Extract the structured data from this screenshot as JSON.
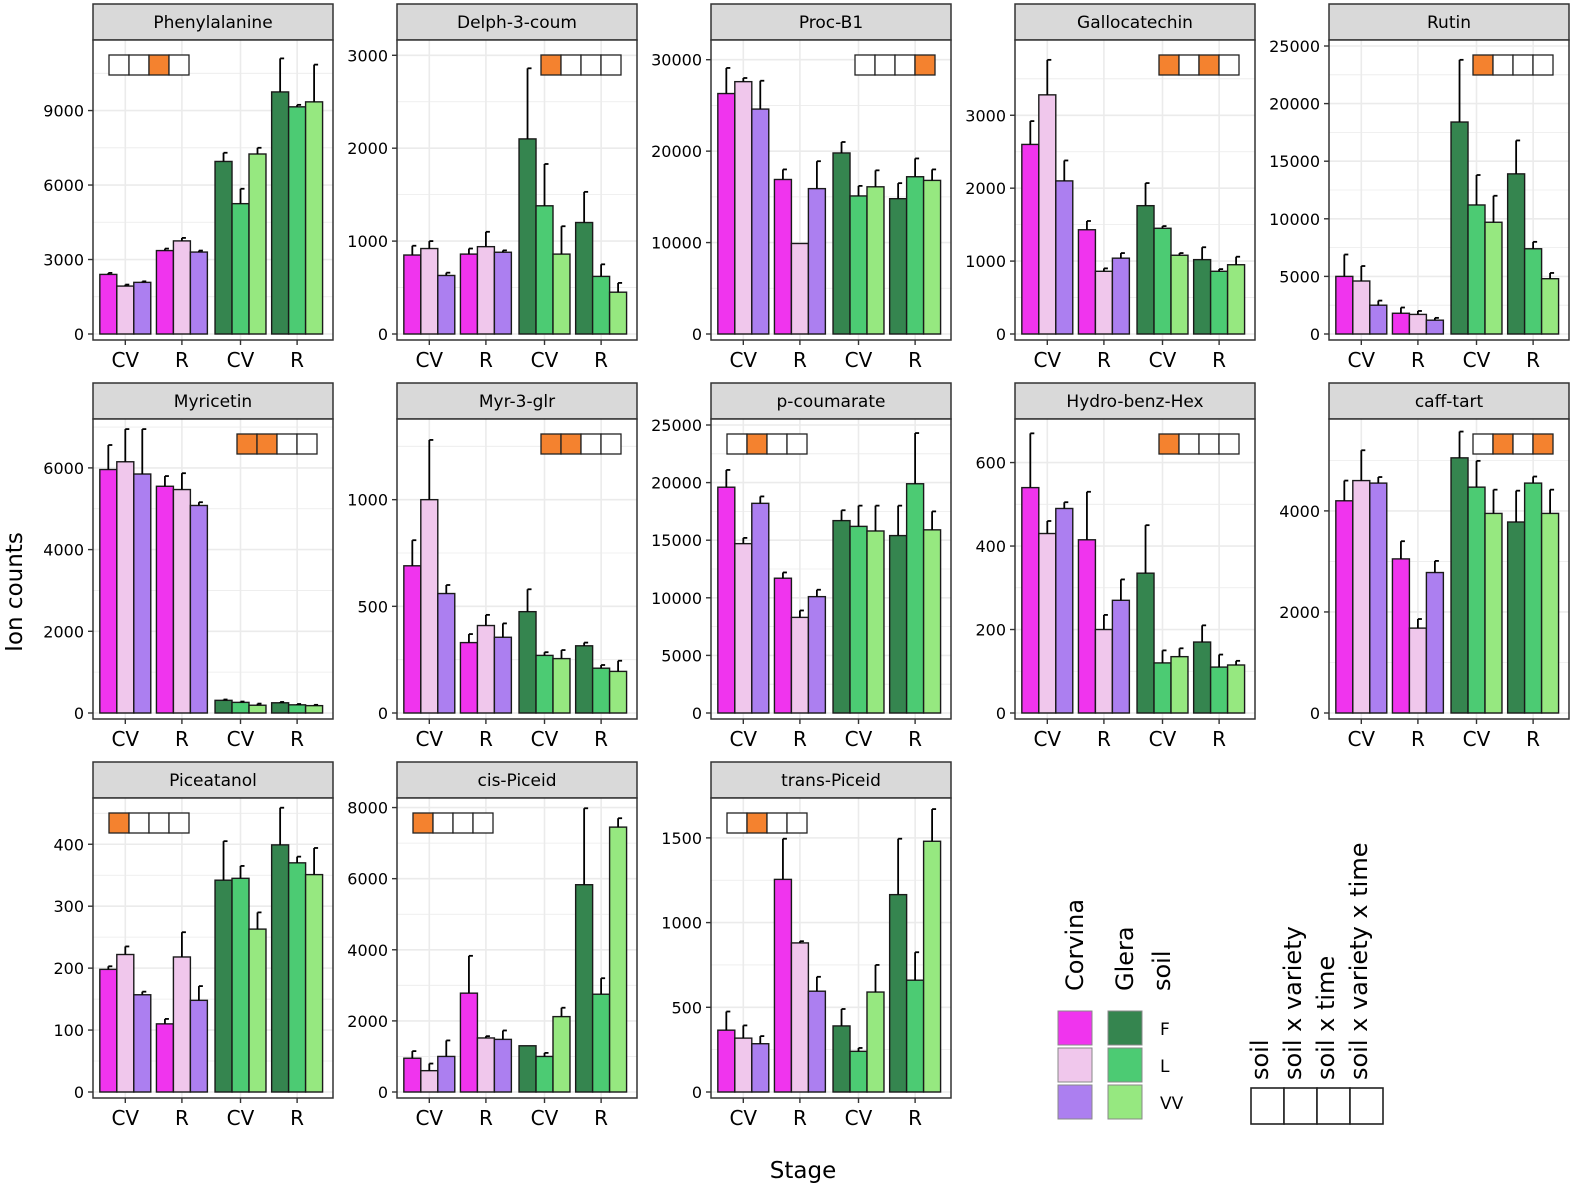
{
  "chart_data": {
    "type": "bar",
    "ylabel": "Ion counts",
    "xlabel": "Stage",
    "x_categories": [
      "CV",
      "R",
      "CV",
      "R"
    ],
    "series_names": [
      "F",
      "L",
      "VV"
    ],
    "colors": {
      "Corvina": [
        "#f034ee",
        "#f0c7ec",
        "#ac7ff0"
      ],
      "Glera": [
        "#35854f",
        "#4ccb73",
        "#96e880"
      ],
      "sig_on": "#f4822f",
      "sig_off": "#ffffff",
      "strip": "#d9d9d9",
      "grid": "#ebebeb"
    },
    "panels": [
      {
        "title": "Phenylalanine",
        "ylim": [
          0,
          11600
        ],
        "ticks": [
          0,
          3000,
          6000,
          9000
        ],
        "sig": [
          0,
          0,
          1,
          0
        ],
        "sig_pos": "left",
        "values": [
          [
            2400,
            1930,
            2080
          ],
          [
            3360,
            3750,
            3300
          ],
          [
            6950,
            5250,
            7250
          ],
          [
            9750,
            9150,
            9350
          ]
        ],
        "errors": [
          [
            60,
            60,
            40
          ],
          [
            80,
            120,
            60
          ],
          [
            350,
            600,
            250
          ],
          [
            1350,
            80,
            1500
          ]
        ]
      },
      {
        "title": "Delph-3-coum",
        "ylim": [
          0,
          3100
        ],
        "ticks": [
          0,
          1000,
          2000,
          3000
        ],
        "sig": [
          1,
          0,
          0,
          0
        ],
        "sig_pos": "right",
        "values": [
          [
            850,
            920,
            630
          ],
          [
            860,
            940,
            880
          ],
          [
            2100,
            1380,
            860
          ],
          [
            1200,
            620,
            450
          ]
        ],
        "errors": [
          [
            100,
            80,
            30
          ],
          [
            60,
            160,
            20
          ],
          [
            760,
            450,
            300
          ],
          [
            330,
            130,
            100
          ]
        ]
      },
      {
        "title": "Proc-B1",
        "ylim": [
          0,
          31500
        ],
        "ticks": [
          0,
          10000,
          20000,
          30000
        ],
        "sig": [
          0,
          0,
          0,
          1
        ],
        "sig_pos": "right",
        "values": [
          [
            26300,
            27600,
            24600
          ],
          [
            16900,
            9900,
            15900
          ],
          [
            19800,
            15100,
            16100
          ],
          [
            14800,
            17200,
            16800
          ]
        ],
        "errors": [
          [
            2800,
            400,
            3100
          ],
          [
            1100,
            0,
            3000
          ],
          [
            1200,
            1100,
            1800
          ],
          [
            1700,
            2000,
            1200
          ]
        ]
      },
      {
        "title": "Gallocatechin",
        "ylim": [
          0,
          3950
        ],
        "ticks": [
          0,
          1000,
          2000,
          3000
        ],
        "sig": [
          1,
          0,
          1,
          0
        ],
        "sig_pos": "right",
        "values": [
          [
            2600,
            3280,
            2100
          ],
          [
            1430,
            860,
            1040
          ],
          [
            1760,
            1450,
            1080
          ],
          [
            1020,
            860,
            950
          ]
        ],
        "errors": [
          [
            320,
            480,
            280
          ],
          [
            120,
            40,
            70
          ],
          [
            310,
            30,
            30
          ],
          [
            170,
            30,
            110
          ]
        ]
      },
      {
        "title": "Rutin",
        "ylim": [
          0,
          25000
        ],
        "ticks": [
          0,
          5000,
          10000,
          15000,
          20000,
          25000
        ],
        "sig": [
          1,
          0,
          0,
          0
        ],
        "sig_pos": "right",
        "values": [
          [
            5000,
            4600,
            2500
          ],
          [
            1800,
            1700,
            1200
          ],
          [
            18400,
            11200,
            9700
          ],
          [
            13900,
            7400,
            4800
          ]
        ],
        "errors": [
          [
            1900,
            1300,
            400
          ],
          [
            500,
            300,
            200
          ],
          [
            5400,
            2600,
            2300
          ],
          [
            2900,
            600,
            500
          ]
        ]
      },
      {
        "title": "Myricetin",
        "ylim": [
          0,
          7050
        ],
        "ticks": [
          0,
          2000,
          4000,
          6000
        ],
        "sig": [
          1,
          1,
          0,
          0
        ],
        "sig_pos": "right",
        "values": [
          [
            5960,
            6150,
            5850
          ],
          [
            5550,
            5470,
            5080
          ],
          [
            310,
            260,
            190
          ],
          [
            250,
            200,
            180
          ]
        ],
        "errors": [
          [
            600,
            800,
            1100
          ],
          [
            250,
            400,
            80
          ],
          [
            20,
            20,
            40
          ],
          [
            20,
            20,
            20
          ]
        ]
      },
      {
        "title": "Myr-3-glr",
        "ylim": [
          0,
          1350
        ],
        "ticks": [
          0,
          500,
          1000
        ],
        "sig": [
          1,
          1,
          0,
          0
        ],
        "sig_pos": "right",
        "values": [
          [
            690,
            1000,
            560
          ],
          [
            330,
            410,
            355
          ],
          [
            475,
            270,
            255
          ],
          [
            315,
            210,
            195
          ]
        ],
        "errors": [
          [
            120,
            280,
            40
          ],
          [
            40,
            50,
            65
          ],
          [
            105,
            15,
            40
          ],
          [
            15,
            15,
            50
          ]
        ]
      },
      {
        "title": "p-coumarate",
        "ylim": [
          0,
          25000
        ],
        "ticks": [
          0,
          5000,
          10000,
          15000,
          20000,
          25000
        ],
        "sig": [
          0,
          1,
          0,
          0
        ],
        "sig_pos": "left",
        "values": [
          [
            19600,
            14700,
            18200
          ],
          [
            11700,
            8300,
            10100
          ],
          [
            16700,
            16200,
            15800
          ],
          [
            15400,
            19900,
            15900
          ]
        ],
        "errors": [
          [
            1500,
            500,
            600
          ],
          [
            500,
            600,
            600
          ],
          [
            900,
            1800,
            2200
          ],
          [
            2600,
            4400,
            1600
          ]
        ]
      },
      {
        "title": "Hydro-benz-Hex",
        "ylim": [
          0,
          690
        ],
        "ticks": [
          0,
          200,
          400,
          600
        ],
        "sig": [
          1,
          0,
          0,
          0
        ],
        "sig_pos": "right",
        "values": [
          [
            540,
            430,
            490
          ],
          [
            415,
            200,
            270
          ],
          [
            335,
            120,
            135
          ],
          [
            170,
            110,
            115
          ]
        ],
        "errors": [
          [
            130,
            30,
            15
          ],
          [
            115,
            35,
            50
          ],
          [
            115,
            30,
            20
          ],
          [
            40,
            30,
            10
          ]
        ]
      },
      {
        "title": "caff-tart",
        "ylim": [
          0,
          5700
        ],
        "ticks": [
          0,
          2000,
          4000
        ],
        "sig": [
          0,
          1,
          0,
          1
        ],
        "sig_pos": "right",
        "values": [
          [
            4200,
            4600,
            4550
          ],
          [
            3050,
            1680,
            2780
          ],
          [
            5050,
            4470,
            3950
          ],
          [
            3780,
            4550,
            3950
          ]
        ],
        "errors": [
          [
            400,
            600,
            120
          ],
          [
            350,
            180,
            230
          ],
          [
            520,
            520,
            470
          ],
          [
            620,
            130,
            470
          ]
        ]
      },
      {
        "title": "Piceatanol",
        "ylim": [
          0,
          465
        ],
        "ticks": [
          0,
          100,
          200,
          300,
          400
        ],
        "sig": [
          1,
          0,
          0,
          0
        ],
        "sig_pos": "left",
        "values": [
          [
            198,
            222,
            157
          ],
          [
            110,
            218,
            148
          ],
          [
            342,
            345,
            263
          ],
          [
            399,
            370,
            351
          ]
        ],
        "errors": [
          [
            5,
            13,
            5
          ],
          [
            8,
            40,
            23
          ],
          [
            63,
            20,
            27
          ],
          [
            60,
            10,
            43
          ]
        ]
      },
      {
        "title": "cis-Piceid",
        "ylim": [
          0,
          8100
        ],
        "ticks": [
          0,
          2000,
          4000,
          6000,
          8000
        ],
        "sig": [
          1,
          0,
          0,
          0
        ],
        "sig_pos": "left",
        "values": [
          [
            950,
            600,
            1000
          ],
          [
            2780,
            1520,
            1480
          ],
          [
            1300,
            1000,
            2120
          ],
          [
            5830,
            2750,
            7450
          ]
        ],
        "errors": [
          [
            200,
            200,
            450
          ],
          [
            1050,
            50,
            250
          ],
          [
            0,
            100,
            250
          ],
          [
            2150,
            450,
            250
          ]
        ]
      },
      {
        "title": "trans-Piceid",
        "ylim": [
          0,
          1700
        ],
        "ticks": [
          0,
          500,
          1000,
          1500
        ],
        "sig": [
          0,
          1,
          0,
          0
        ],
        "sig_pos": "left",
        "values": [
          [
            365,
            318,
            285
          ],
          [
            1255,
            880,
            595
          ],
          [
            390,
            240,
            590
          ],
          [
            1165,
            660,
            1480
          ]
        ],
        "errors": [
          [
            110,
            75,
            45
          ],
          [
            240,
            10,
            85
          ],
          [
            100,
            20,
            160
          ],
          [
            330,
            165,
            190
          ]
        ]
      }
    ],
    "legend": {
      "group_labels": [
        "Corvina",
        "Glera",
        "soil"
      ],
      "soil_levels": [
        "F",
        "L",
        "VV"
      ],
      "sig_labels": [
        "soil",
        "soil x variety",
        "soil x time",
        "soil x variety x time"
      ]
    }
  }
}
